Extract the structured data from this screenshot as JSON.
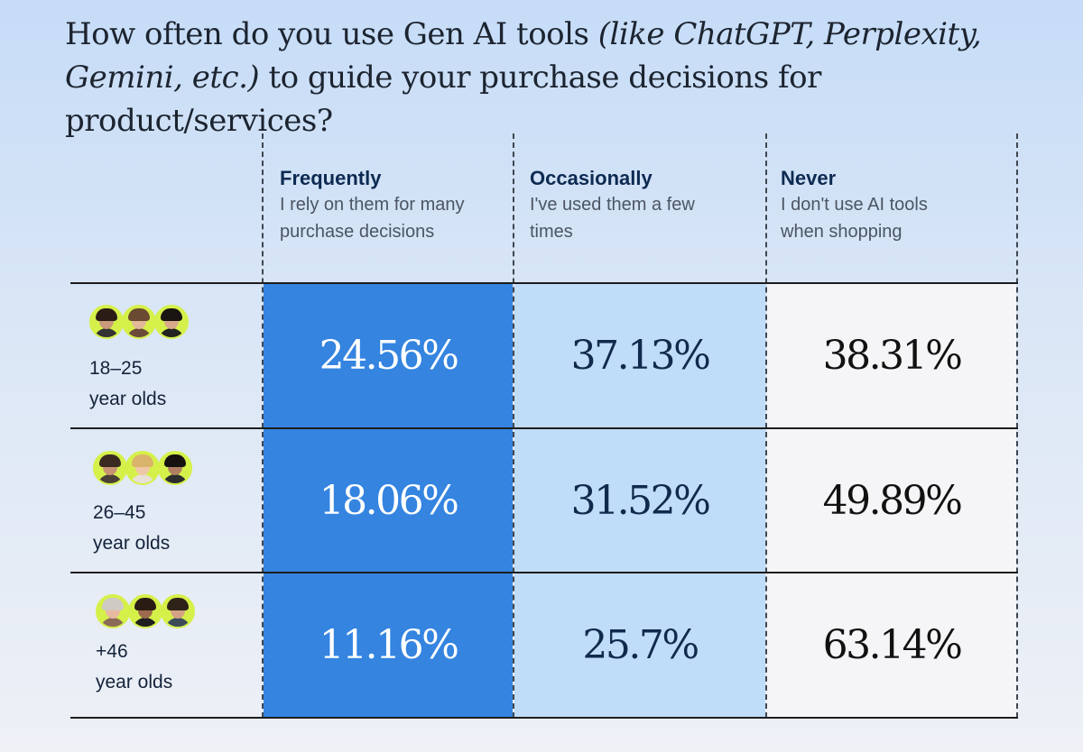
{
  "title": {
    "part1": "How often do you use Gen AI tools ",
    "italic1": "(like ChatGPT, Perplexity,",
    "italic2": "Gemini, etc.)",
    "part2": " to guide your purchase decisions for product/services?"
  },
  "columns": [
    {
      "title": "Frequently",
      "desc1": "I rely on them for many",
      "desc2": "purchase decisions"
    },
    {
      "title": "Occasionally",
      "desc1": "I've used them a few",
      "desc2": "times"
    },
    {
      "title": "Never",
      "desc1": "I don't use AI tools",
      "desc2": "when shopping"
    }
  ],
  "rows": [
    {
      "label1": "18–25",
      "label2": "year olds",
      "values": [
        "24.56%",
        "37.13%",
        "38.31%"
      ]
    },
    {
      "label1": "26–45",
      "label2": "year olds",
      "values": [
        "18.06%",
        "31.52%",
        "49.89%"
      ]
    },
    {
      "label1": "+46",
      "label2": "year olds",
      "values": [
        "11.16%",
        "25.7%",
        "63.14%"
      ]
    }
  ],
  "colors": {
    "frequently": "#3484e0",
    "occasionally": "#bfdcf8",
    "never": "#f5f5f7",
    "avatar_ring": "#d6f04a"
  },
  "chart_data": {
    "type": "table",
    "title": "How often do you use Gen AI tools (like ChatGPT, Perplexity, Gemini, etc.) to guide your purchase decisions for product/services?",
    "categories": [
      "18–25 year olds",
      "26–45 year olds",
      "+46 year olds"
    ],
    "series": [
      {
        "name": "Frequently",
        "values": [
          24.56,
          18.06,
          11.16
        ]
      },
      {
        "name": "Occasionally",
        "values": [
          37.13,
          31.52,
          25.7
        ]
      },
      {
        "name": "Never",
        "values": [
          38.31,
          49.89,
          63.14
        ]
      }
    ],
    "unit": "%"
  }
}
